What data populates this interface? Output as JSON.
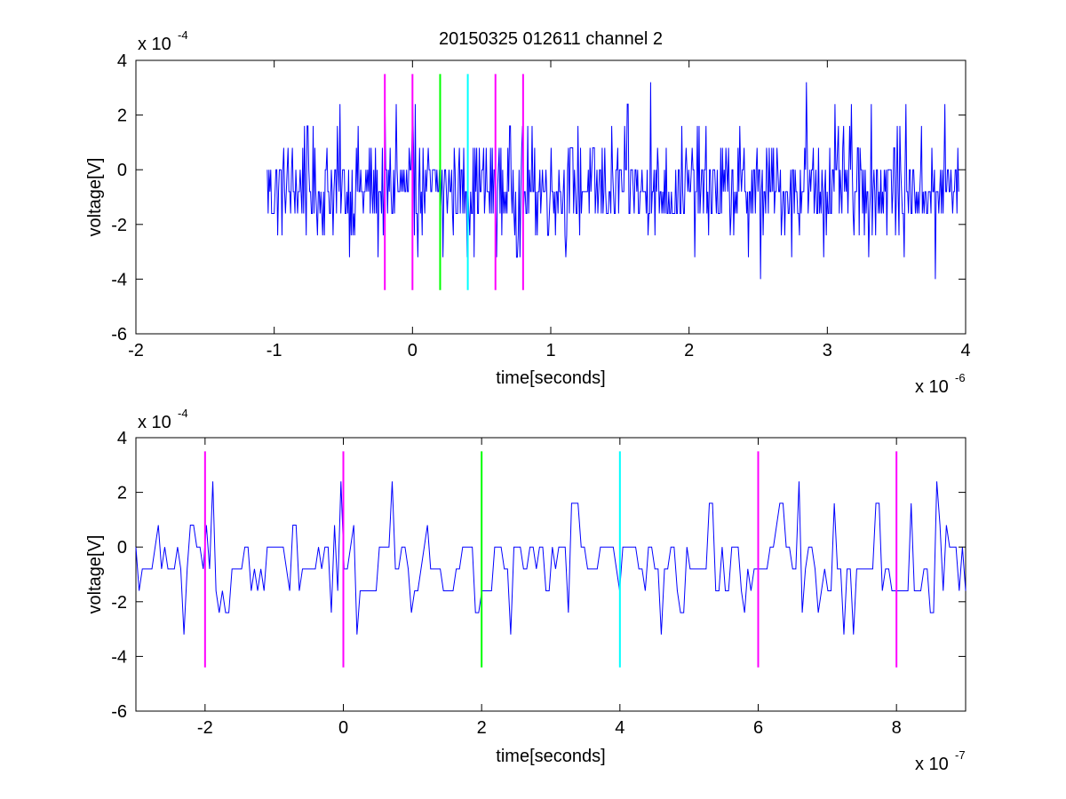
{
  "figure": {
    "title": "20150325 012611 channel 2"
  },
  "chart_data": [
    {
      "type": "line",
      "title": "20150325 012611 channel 2",
      "xlabel": "time[seconds]",
      "ylabel": "voltage[V]",
      "x_exponent_label": "x 10",
      "x_exponent": "-6",
      "y_exponent_label": "x 10",
      "y_exponent": "-4",
      "xlim": [
        -2,
        4
      ],
      "ylim": [
        -6,
        4
      ],
      "x_ticks": [
        -2,
        -1,
        0,
        1,
        2,
        3,
        4
      ],
      "x_tick_labels": [
        "-2",
        "-1",
        "0",
        "1",
        "2",
        "3",
        "4"
      ],
      "y_ticks": [
        -6,
        -4,
        -2,
        0,
        2,
        4
      ],
      "y_tick_labels": [
        "-6",
        "-4",
        "-2",
        "0",
        "2",
        "4"
      ],
      "grid": false,
      "series": [
        {
          "color": "#0000ff",
          "x_range": [
            -1.05,
            3.95
          ],
          "points": 800,
          "levels": [
            -3.2,
            -2.4,
            -1.6,
            -0.8,
            0,
            0.8,
            1.6,
            2.4
          ],
          "peaks": [
            {
              "x": -0.78,
              "y": 1.6
            },
            {
              "x": -0.25,
              "y": -3.2
            },
            {
              "x": -0.12,
              "y": 2.4
            },
            {
              "x": 0.02,
              "y": 2.4
            },
            {
              "x": 0.22,
              "y": -3.2
            },
            {
              "x": 0.75,
              "y": -3.2
            },
            {
              "x": 1.72,
              "y": 3.2
            },
            {
              "x": 2.52,
              "y": -4.0
            },
            {
              "x": 2.85,
              "y": 3.2
            },
            {
              "x": 3.78,
              "y": -4.0
            },
            {
              "x": 3.85,
              "y": 2.4
            }
          ]
        }
      ],
      "vlines": [
        {
          "x": -0.2,
          "color": "#ff00ff",
          "ymin": -4.4,
          "ymax": 3.5
        },
        {
          "x": 0.0,
          "color": "#ff00ff",
          "ymin": -4.4,
          "ymax": 3.5
        },
        {
          "x": 0.2,
          "color": "#00ff00",
          "ymin": -4.4,
          "ymax": 3.5
        },
        {
          "x": 0.4,
          "color": "#00ffff",
          "ymin": -4.4,
          "ymax": 3.5
        },
        {
          "x": 0.6,
          "color": "#ff00ff",
          "ymin": -4.4,
          "ymax": 3.5
        },
        {
          "x": 0.8,
          "color": "#ff00ff",
          "ymin": -4.4,
          "ymax": 3.5
        }
      ]
    },
    {
      "type": "line",
      "title": "",
      "xlabel": "time[seconds]",
      "ylabel": "voltage[V]",
      "x_exponent_label": "x 10",
      "x_exponent": "-7",
      "y_exponent_label": "x 10",
      "y_exponent": "-4",
      "xlim": [
        -3,
        9
      ],
      "ylim": [
        -6,
        4
      ],
      "x_ticks": [
        -2,
        0,
        2,
        4,
        6,
        8
      ],
      "x_tick_labels": [
        "-2",
        "0",
        "2",
        "4",
        "6",
        "8"
      ],
      "y_ticks": [
        -6,
        -4,
        -2,
        0,
        2,
        4
      ],
      "y_tick_labels": [
        "-6",
        "-4",
        "-2",
        "0",
        "2",
        "4"
      ],
      "grid": false,
      "series": [
        {
          "color": "#0000ff",
          "x_range": [
            -3,
            9
          ],
          "points": 260,
          "levels": [
            -3.2,
            -2.4,
            -1.6,
            -0.8,
            0,
            0.8,
            1.6,
            2.4
          ],
          "peaks": [
            {
              "x": -2.3,
              "y": -3.2
            },
            {
              "x": -1.9,
              "y": 2.4
            },
            {
              "x": 0.2,
              "y": -3.2
            },
            {
              "x": 2.4,
              "y": -3.2
            },
            {
              "x": 4.6,
              "y": -3.2
            },
            {
              "x": 7.4,
              "y": -3.2
            },
            {
              "x": 8.6,
              "y": 2.4
            }
          ]
        }
      ],
      "vlines": [
        {
          "x": -2,
          "color": "#ff00ff",
          "ymin": -4.4,
          "ymax": 3.5
        },
        {
          "x": 0,
          "color": "#ff00ff",
          "ymin": -4.4,
          "ymax": 3.5
        },
        {
          "x": 2,
          "color": "#00ff00",
          "ymin": -4.4,
          "ymax": 3.5
        },
        {
          "x": 4,
          "color": "#00ffff",
          "ymin": -4.4,
          "ymax": 3.5
        },
        {
          "x": 6,
          "color": "#ff00ff",
          "ymin": -4.4,
          "ymax": 3.5
        },
        {
          "x": 8,
          "color": "#ff00ff",
          "ymin": -4.4,
          "ymax": 3.5
        }
      ]
    }
  ]
}
